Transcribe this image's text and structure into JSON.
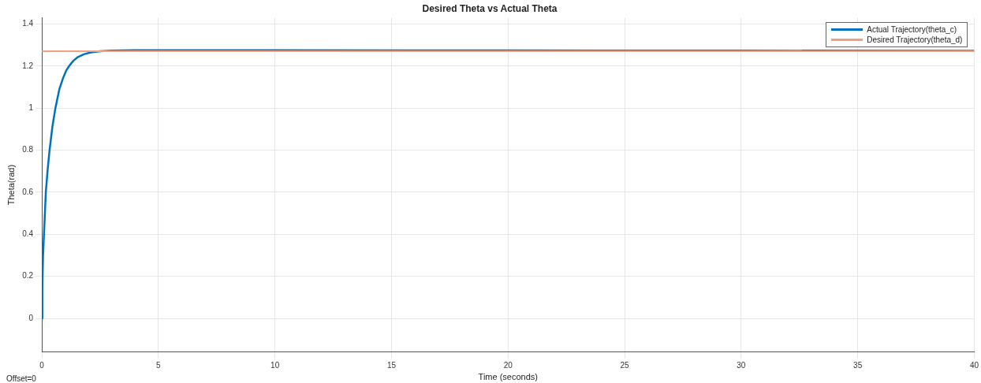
{
  "chart_data": {
    "type": "line",
    "title": "Desired Theta vs Actual Theta",
    "xlabel": "Time (seconds)",
    "ylabel": "Theta(rad)",
    "xlim": [
      0,
      40
    ],
    "xticks": [
      0,
      5,
      10,
      15,
      20,
      25,
      30,
      35,
      40
    ],
    "ylim": [
      -0.16,
      1.43
    ],
    "yticks": [
      0,
      0.2,
      0.4,
      0.6,
      0.8,
      1,
      1.2,
      1.4
    ],
    "grid": true,
    "legend": "top right",
    "marker": "none",
    "line_style": "solid",
    "annotations": [
      "Offset=0"
    ],
    "series": [
      {
        "name": "Actual Trajectory(theta_c)",
        "color": "#0072bd",
        "x": [
          0,
          0.02,
          0.05,
          0.09,
          0.13,
          0.17,
          0.25,
          0.33,
          0.45,
          0.58,
          0.75,
          0.9,
          1.05,
          1.17,
          1.35,
          1.55,
          1.8,
          2.1,
          2.5,
          3,
          4,
          6,
          10,
          20,
          30,
          40
        ],
        "values": [
          0,
          0.15,
          0.3,
          0.4,
          0.5,
          0.6,
          0.71,
          0.8,
          0.91,
          1,
          1.09,
          1.14,
          1.18,
          1.2,
          1.225,
          1.243,
          1.256,
          1.265,
          1.27,
          1.273,
          1.275,
          1.275,
          1.275,
          1.274,
          1.273,
          1.272
        ]
      },
      {
        "name": "Desired Trajectory(theta_d)",
        "color": "#f0a080",
        "x": [
          0,
          40
        ],
        "values": [
          1.27,
          1.27
        ]
      }
    ]
  }
}
